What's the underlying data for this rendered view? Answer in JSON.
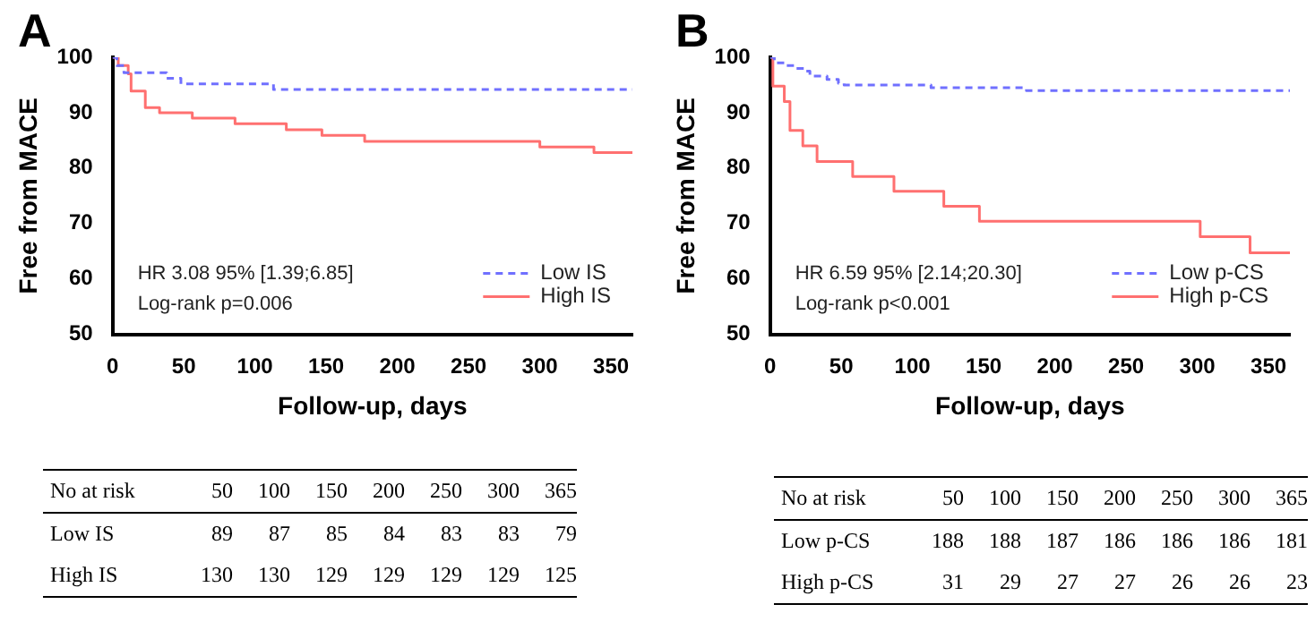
{
  "chart_data": [
    {
      "type": "step",
      "title": "A",
      "xlabel": "Follow-up, days",
      "ylabel": "Free from MACE",
      "xlim": [
        0,
        365
      ],
      "xticks": [
        0,
        50,
        100,
        150,
        200,
        250,
        300,
        350
      ],
      "ylim": [
        50,
        100
      ],
      "yticks": [
        50,
        60,
        70,
        80,
        90,
        100
      ],
      "grid": false,
      "legend": "bottom right",
      "marker": "none",
      "annotations": [
        "HR 3.08 95% [1.39;6.85]",
        "Log-rank p=0.006"
      ],
      "series": [
        {
          "name": "Low IS",
          "color": "#7070ff",
          "line_style": "dashed",
          "x": [
            0,
            3,
            8,
            38,
            48,
            113,
            365
          ],
          "values": [
            100,
            98.5,
            97.2,
            96.2,
            95.2,
            94.2,
            94.2
          ]
        },
        {
          "name": "High IS",
          "color": "#ff7070",
          "line_style": "solid",
          "x": [
            0,
            4,
            11,
            13,
            23,
            33,
            56,
            86,
            122,
            147,
            177,
            300,
            338,
            365
          ],
          "values": [
            100,
            98.5,
            97,
            93.9,
            90.9,
            90,
            89,
            88,
            86.9,
            85.9,
            84.8,
            83.8,
            82.8,
            82.8
          ]
        }
      ]
    },
    {
      "type": "other",
      "title": "No at risk",
      "categories": [
        "50",
        "100",
        "150",
        "200",
        "250",
        "300",
        "365"
      ],
      "data_labels": true,
      "series": [
        {
          "name": "Low IS",
          "values": [
            89,
            87,
            85,
            84,
            83,
            83,
            79
          ]
        },
        {
          "name": "High IS",
          "values": [
            130,
            130,
            129,
            129,
            129,
            129,
            125
          ]
        }
      ]
    },
    {
      "type": "step",
      "title": "B",
      "xlabel": "Follow-up, days",
      "ylabel": "Free from MACE",
      "xlim": [
        0,
        365
      ],
      "xticks": [
        0,
        50,
        100,
        150,
        200,
        250,
        300,
        350
      ],
      "ylim": [
        50,
        100
      ],
      "yticks": [
        50,
        60,
        70,
        80,
        90,
        100
      ],
      "grid": false,
      "legend": "bottom right",
      "marker": "none",
      "annotations": [
        "HR 6.59 95% [2.14;20.30]",
        "Log-rank p<0.001"
      ],
      "series": [
        {
          "name": "Low p-CS",
          "color": "#7070ff",
          "line_style": "dashed",
          "x": [
            0,
            3,
            10,
            18,
            25,
            28,
            40,
            48,
            52,
            113,
            180,
            365
          ],
          "values": [
            100,
            99,
            98.5,
            98,
            97.5,
            96.6,
            96,
            95.3,
            95,
            94.5,
            94,
            94
          ]
        },
        {
          "name": "High p-CS",
          "color": "#ff7070",
          "line_style": "solid",
          "x": [
            0,
            2,
            10,
            14,
            23,
            33,
            58,
            87,
            122,
            147,
            302,
            337,
            365
          ],
          "values": [
            100,
            94.8,
            92,
            86.8,
            84,
            81.2,
            78.5,
            75.8,
            73.1,
            70.4,
            67.6,
            64.7,
            64.7
          ]
        }
      ]
    },
    {
      "type": "other",
      "title": "No at risk",
      "categories": [
        "50",
        "100",
        "150",
        "200",
        "250",
        "300",
        "365"
      ],
      "data_labels": true,
      "series": [
        {
          "name": "Low p-CS",
          "values": [
            188,
            188,
            187,
            186,
            186,
            186,
            181
          ]
        },
        {
          "name": "High p-CS",
          "values": [
            31,
            29,
            27,
            27,
            26,
            26,
            23
          ]
        }
      ]
    }
  ]
}
